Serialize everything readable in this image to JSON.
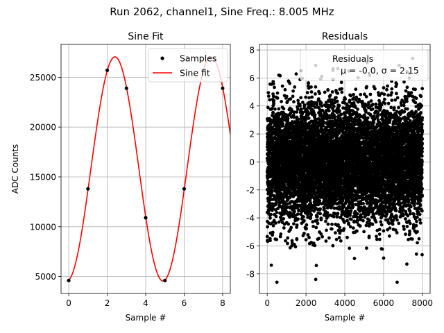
{
  "figure": {
    "suptitle": "Run 2062, channel1, Sine Freq.: 8.005 MHz"
  },
  "chart_data": [
    {
      "type": "line",
      "title": "Sine Fit",
      "xlabel": "Sample #",
      "ylabel": "ADC Counts",
      "xlim": [
        -0.4,
        8.4
      ],
      "ylim": [
        3300,
        28300
      ],
      "xticks": [
        0,
        2,
        4,
        6,
        8
      ],
      "yticks": [
        5000,
        10000,
        15000,
        20000,
        25000
      ],
      "grid": true,
      "legend_position": "top-right",
      "series": [
        {
          "name": "Samples",
          "kind": "scatter",
          "color": "#000000",
          "x": [
            0,
            1,
            2,
            3,
            4,
            5,
            6,
            7,
            8
          ],
          "y": [
            4600,
            13800,
            25700,
            23900,
            10900,
            4600,
            13800,
            25700,
            23900
          ]
        },
        {
          "name": "Sine fit",
          "kind": "line",
          "color": "#ff0000",
          "model": {
            "amplitude": 11250,
            "offset": 15800,
            "period": 5.0,
            "peak_at": 2.4
          }
        }
      ]
    },
    {
      "type": "scatter",
      "title": "Residuals",
      "xlabel": "Sample #",
      "ylabel": "",
      "xlim": [
        -400,
        8400
      ],
      "ylim": [
        -9.4,
        8.4
      ],
      "xticks": [
        0,
        2000,
        4000,
        6000,
        8000
      ],
      "yticks": [
        -8,
        -6,
        -4,
        -2,
        0,
        2,
        4,
        6,
        8
      ],
      "grid": true,
      "legend_position": "top-right",
      "series": [
        {
          "name": "Residuals",
          "legend_line2": "μ = -0.0, σ = 2.15",
          "color": "#000000",
          "mean": 0.0,
          "std": 2.15,
          "n_samples": 8000,
          "notable_points": [
            {
              "x": 500,
              "y": -8.6
            },
            {
              "x": 2500,
              "y": -8.4
            },
            {
              "x": 6700,
              "y": -8.6
            },
            {
              "x": 2500,
              "y": 6.9
            },
            {
              "x": 6800,
              "y": 6.9
            },
            {
              "x": 7200,
              "y": -7.3
            },
            {
              "x": 600,
              "y": 6.2
            },
            {
              "x": 4500,
              "y": -6.9
            }
          ]
        }
      ]
    }
  ]
}
